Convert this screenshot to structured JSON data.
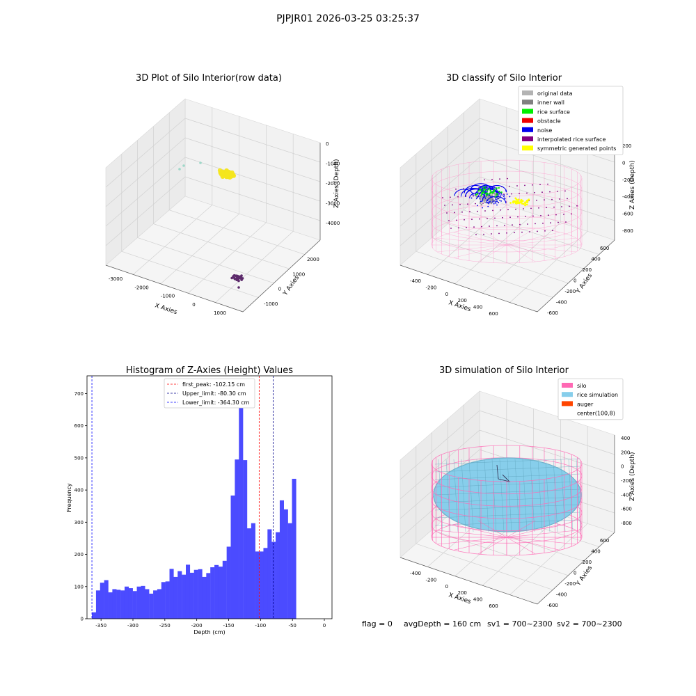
{
  "figure": {
    "suptitle": "PJPJR01 2026-03-25 03:25:37",
    "footer": {
      "flag": "flag = 0",
      "avg": "avgDepth = 160 cm",
      "sv1": "sv1 = 700~2300",
      "sv2": "sv2 = 700~2300"
    }
  },
  "chart_data": [
    {
      "type": "scatter3d",
      "title": "3D Plot of Silo Interior(row data)",
      "xlabel": "X Axies",
      "ylabel": "Y Axies",
      "zlabel": "Z Axies (Depth)",
      "x_ticks": [
        "-3000",
        "-2000",
        "-1000",
        "0",
        "1000"
      ],
      "y_ticks": [
        "-1000",
        "0",
        "1000",
        "2000"
      ],
      "z_ticks": [
        "0",
        "-1000",
        "-2000",
        "-3000",
        "-4000"
      ],
      "xlim": [
        -3500,
        1500
      ],
      "ylim": [
        -1500,
        3000
      ],
      "zlim": [
        -4500,
        0
      ],
      "series": [
        {
          "color": "#f5e61e",
          "description_points": "dense rice cluster"
        },
        {
          "color": "#9fd8c9",
          "description_points": "sparse outliers"
        },
        {
          "color": "#5c2a6b",
          "description_points": "bottom cluster"
        }
      ]
    },
    {
      "type": "scatter3d",
      "title": "3D classify of Silo Interior",
      "xlabel": "X Axies",
      "ylabel": "Y Axies",
      "zlabel": "Z Axies (Depth)",
      "x_ticks": [
        "-400",
        "-200",
        "0",
        "200",
        "400",
        "600"
      ],
      "y_ticks": [
        "-600",
        "-400",
        "-200",
        "0",
        "200",
        "400",
        "600"
      ],
      "z_ticks": [
        "200",
        "0",
        "-200",
        "-400",
        "-600",
        "-800"
      ],
      "legend_position": "top-right",
      "legend": [
        {
          "label": "original data",
          "color": "#b3b3b3"
        },
        {
          "label": "inner wall",
          "color": "#808080"
        },
        {
          "label": "rice surface",
          "color": "#00ee00"
        },
        {
          "label": "obstacle",
          "color": "#ee0000"
        },
        {
          "label": "noise",
          "color": "#0000ee"
        },
        {
          "label": "interpolated rice surface",
          "color": "#800080"
        },
        {
          "label": "symmetric generated points",
          "color": "#ffff00"
        }
      ]
    },
    {
      "type": "bar",
      "title": "Histogram of Z-Axies (Height) Values",
      "xlabel": "Depth (cm)",
      "ylabel": "Frequency",
      "xlim": [
        -372,
        12
      ],
      "ylim": [
        0,
        755
      ],
      "x_ticks": [
        -350,
        -300,
        -250,
        -200,
        -150,
        -100,
        -50,
        0
      ],
      "y_ticks": [
        0,
        100,
        200,
        300,
        400,
        500,
        600,
        700
      ],
      "bar_color": "#4b4bff",
      "bins_start": -364.3,
      "bin_width": 6.4,
      "values": [
        20,
        88,
        112,
        120,
        82,
        92,
        90,
        88,
        100,
        95,
        86,
        100,
        102,
        92,
        78,
        88,
        92,
        114,
        116,
        155,
        130,
        148,
        137,
        168,
        143,
        152,
        154,
        130,
        142,
        160,
        167,
        162,
        180,
        224,
        383,
        495,
        717,
        493,
        281,
        297,
        209,
        209,
        220,
        278,
        239,
        269,
        368,
        340,
        297,
        435
      ],
      "lines": [
        {
          "label": "first_peak: -102.15 cm",
          "x": -102.15,
          "color": "#ff0000"
        },
        {
          "label": "Upper_limit: -80.30 cm",
          "x": -80.3,
          "color": "#00008b"
        },
        {
          "label": "Lower_limit: -364.30 cm",
          "x": -364.3,
          "color": "#0000ff"
        }
      ],
      "legend_position": "top-center"
    },
    {
      "type": "surface3d",
      "title": "3D simulation of Silo Interior",
      "xlabel": "X Axies",
      "ylabel": "Y Axies",
      "zlabel": "Z Axies (Depth)",
      "x_ticks": [
        "-400",
        "-200",
        "0",
        "200",
        "400",
        "600"
      ],
      "y_ticks": [
        "-600",
        "-400",
        "-200",
        "0",
        "200",
        "400",
        "600"
      ],
      "z_ticks": [
        "400",
        "200",
        "0",
        "-200",
        "-400",
        "-600",
        "-800"
      ],
      "legend_position": "top-right",
      "legend": [
        {
          "label": "silo",
          "color": "#ff69b4"
        },
        {
          "label": "rice simulation",
          "color": "#87ceeb"
        },
        {
          "label": "auger",
          "color": "#ff4500"
        },
        {
          "label": "center(100,8)",
          "color": ""
        }
      ]
    }
  ]
}
